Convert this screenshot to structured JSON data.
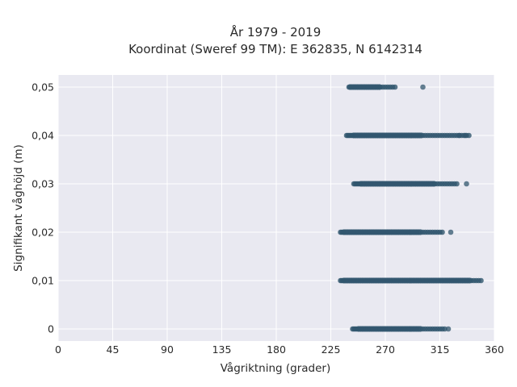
{
  "chart_data": {
    "type": "scatter",
    "title": "År 1979 - 2019",
    "subtitle": "Koordinat (Sweref 99 TM): E 362835, N 6142314",
    "xlabel": "Vågriktning (grader)",
    "ylabel": "Signifikant våghöjd (m)",
    "xlim": [
      0,
      360
    ],
    "ylim": [
      -0.0025,
      0.0525
    ],
    "x_ticks": [
      0,
      45,
      90,
      135,
      180,
      225,
      270,
      315,
      360
    ],
    "x_tick_labels": [
      "0",
      "45",
      "90",
      "135",
      "180",
      "225",
      "270",
      "315",
      "360"
    ],
    "y_ticks": [
      0,
      0.01,
      0.02,
      0.03,
      0.04,
      0.05
    ],
    "y_tick_labels": [
      "0",
      "0,01",
      "0,02",
      "0,03",
      "0,04",
      "0,05"
    ],
    "grid": true,
    "legend": "none",
    "colors": {
      "point": "#31566e",
      "background": "#e9e9f1",
      "grid": "#ffffff"
    },
    "series": [
      {
        "points": [
          {
            "y": 0.0,
            "x_range": [
              243,
              320
            ],
            "dense_range": [
              248,
              300
            ],
            "outliers": [
              322
            ]
          },
          {
            "y": 0.01,
            "x_range": [
              233,
              350
            ],
            "dense_range": [
              236,
              340
            ],
            "outliers": []
          },
          {
            "y": 0.02,
            "x_range": [
              233,
              318
            ],
            "dense_range": [
              236,
              300
            ],
            "outliers": [
              324
            ]
          },
          {
            "y": 0.03,
            "x_range": [
              244,
              330
            ],
            "dense_range": [
              250,
              310
            ],
            "outliers": [
              337
            ]
          },
          {
            "y": 0.04,
            "x_range": [
              238,
              340
            ],
            "dense_range": [
              244,
              300
            ],
            "outliers": [
              331,
              336
            ]
          },
          {
            "y": 0.05,
            "x_range": [
              240,
              279
            ],
            "dense_range": [
              241,
              265
            ],
            "outliers": [
              301
            ]
          }
        ]
      }
    ]
  }
}
